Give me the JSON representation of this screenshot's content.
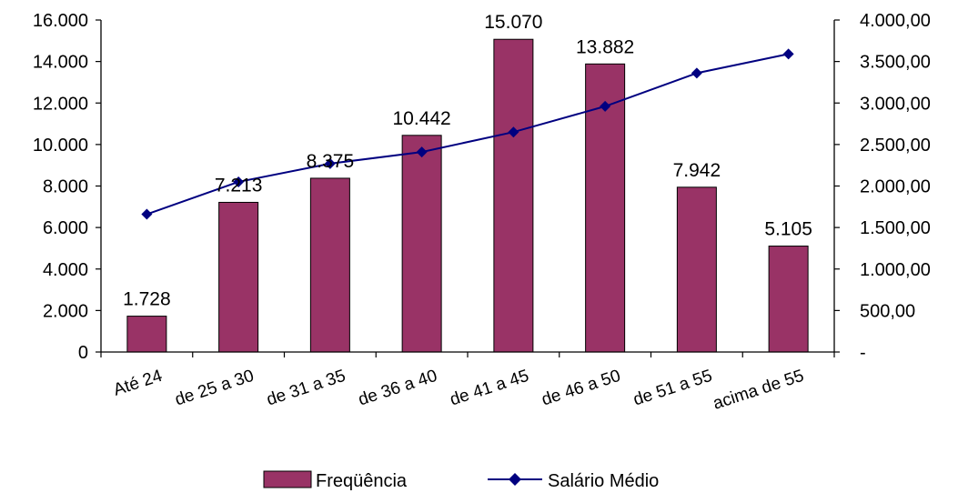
{
  "chart_data": {
    "type": "bar",
    "categories": [
      "Até 24",
      "de 25 a 30",
      "de 31 a 35",
      "de 36 a 40",
      "de 41 a 45",
      "de 46 a 50",
      "de 51 a 55",
      "acima de 55"
    ],
    "series": [
      {
        "name": "Freqüência",
        "type": "bar",
        "axis": "left",
        "values": [
          1728,
          7213,
          8375,
          10442,
          15070,
          13882,
          7942,
          5105
        ],
        "labels": [
          "1.728",
          "7.213",
          "8.375",
          "10.442",
          "15.070",
          "13.882",
          "7.942",
          "5.105"
        ],
        "color": "#993366"
      },
      {
        "name": "Salário Médio",
        "type": "line",
        "axis": "right",
        "values": [
          1660,
          2050,
          2270,
          2410,
          2650,
          2960,
          3360,
          3590
        ],
        "color": "#000080"
      }
    ],
    "y_left": {
      "range": [
        0,
        16000
      ],
      "ticks": [
        0,
        2000,
        4000,
        6000,
        8000,
        10000,
        12000,
        14000,
        16000
      ],
      "tick_labels": [
        "0",
        "2.000",
        "4.000",
        "6.000",
        "8.000",
        "10.000",
        "12.000",
        "14.000",
        "16.000"
      ]
    },
    "y_right": {
      "range": [
        0,
        4000
      ],
      "ticks": [
        0,
        500,
        1000,
        1500,
        2000,
        2500,
        3000,
        3500,
        4000
      ],
      "tick_labels": [
        " -",
        "500,00",
        "1.000,00",
        "1.500,00",
        "2.000,00",
        "2.500,00",
        "3.000,00",
        "3.500,00",
        "4.000,00"
      ]
    },
    "grid": false,
    "legend": "bottom-center"
  }
}
